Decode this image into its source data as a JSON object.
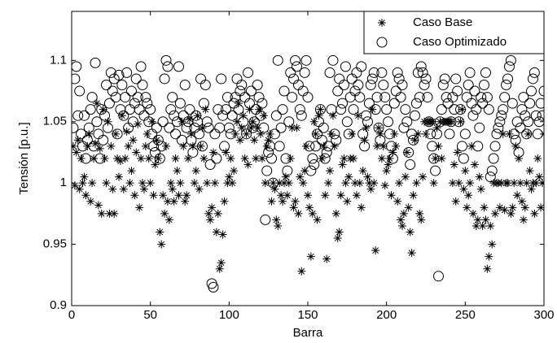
{
  "chart_data": {
    "type": "scatter",
    "xlabel": "Barra",
    "ylabel": "Tensión [p.u.]",
    "xlim": [
      0,
      300
    ],
    "ylim": [
      0.9,
      1.14
    ],
    "xticks": [
      0,
      50,
      100,
      150,
      200,
      250,
      300
    ],
    "yticks": [
      0.9,
      0.95,
      1,
      1.05,
      1.1
    ],
    "grid": false,
    "legend": "upper right",
    "x": [
      1,
      2,
      3,
      4,
      5,
      6,
      7,
      8,
      9,
      10,
      11,
      12,
      13,
      14,
      15,
      16,
      17,
      18,
      19,
      20,
      21,
      22,
      23,
      24,
      25,
      26,
      27,
      28,
      29,
      30,
      31,
      32,
      33,
      34,
      35,
      36,
      37,
      38,
      39,
      40,
      41,
      42,
      43,
      44,
      45,
      46,
      47,
      48,
      49,
      50,
      51,
      52,
      53,
      54,
      55,
      56,
      57,
      58,
      59,
      60,
      61,
      62,
      63,
      64,
      65,
      66,
      67,
      68,
      69,
      70,
      71,
      72,
      73,
      74,
      75,
      76,
      77,
      78,
      79,
      80,
      81,
      82,
      83,
      84,
      85,
      86,
      87,
      88,
      89,
      90,
      91,
      92,
      93,
      94,
      95,
      96,
      97,
      98,
      99,
      100,
      101,
      102,
      103,
      104,
      105,
      106,
      107,
      108,
      109,
      110,
      111,
      112,
      113,
      114,
      115,
      116,
      117,
      118,
      119,
      120,
      121,
      122,
      123,
      124,
      125,
      126,
      127,
      128,
      129,
      130,
      131,
      132,
      133,
      134,
      135,
      136,
      137,
      138,
      139,
      140,
      141,
      142,
      143,
      144,
      145,
      146,
      147,
      148,
      149,
      150,
      151,
      152,
      153,
      154,
      155,
      156,
      157,
      158,
      159,
      160,
      161,
      162,
      163,
      164,
      165,
      166,
      167,
      168,
      169,
      170,
      171,
      172,
      173,
      174,
      175,
      176,
      177,
      178,
      179,
      180,
      181,
      182,
      183,
      184,
      185,
      186,
      187,
      188,
      189,
      190,
      191,
      192,
      193,
      194,
      195,
      196,
      197,
      198,
      199,
      200,
      201,
      202,
      203,
      204,
      205,
      206,
      207,
      208,
      209,
      210,
      211,
      212,
      213,
      214,
      215,
      216,
      217,
      218,
      219,
      220,
      221,
      222,
      223,
      224,
      225,
      226,
      227,
      228,
      229,
      230,
      231,
      232,
      233,
      234,
      235,
      236,
      237,
      238,
      239,
      240,
      241,
      242,
      243,
      244,
      245,
      246,
      247,
      248,
      249,
      250,
      251,
      252,
      253,
      254,
      255,
      256,
      257,
      258,
      259,
      260,
      261,
      262,
      263,
      264,
      265,
      266,
      267,
      268,
      269,
      270,
      271,
      272,
      273,
      274,
      275,
      276,
      277,
      278,
      279,
      280,
      281,
      282,
      283,
      284,
      285,
      286,
      287,
      288,
      289,
      290,
      291,
      292,
      293,
      294,
      295,
      296,
      297,
      298,
      299,
      300
    ],
    "series": [
      {
        "name": "Caso Base",
        "color": "#000000",
        "marker": "asterisk",
        "values": [
          1.03,
          0.998,
          1.025,
          1.035,
          0.995,
          1.02,
          1.0,
          1.005,
          0.99,
          1.03,
          1.04,
          0.985,
          1.0,
          1.02,
          1.032,
          1.065,
          0.982,
          1.028,
          0.975,
          1.06,
          1.02,
          1.0,
          1.05,
          0.975,
          1.03,
          0.995,
          0.975,
          1.04,
          1.02,
          1.005,
          1.018,
          1.055,
          0.995,
          1.02,
          1.042,
          1.03,
          1.0,
          1.01,
          1.035,
          0.99,
          1.025,
          1.048,
          0.98,
          1.02,
          1.0,
          0.995,
          1.03,
          1.04,
          1.02,
          1.0,
          1.05,
          0.99,
          1.015,
          1.035,
          1.02,
          0.96,
          0.95,
          0.99,
          0.975,
          1.03,
          0.985,
          0.97,
          1.0,
          0.995,
          0.985,
          1.02,
          1.01,
          0.99,
          1.0,
          1.05,
          1.03,
          0.985,
          0.99,
          1.02,
          1.052,
          1.04,
          1.03,
          1.0,
          1.01,
          1.055,
          0.995,
          1.03,
          1.045,
          1.02,
          1.06,
          1.0,
          0.975,
          0.97,
          0.98,
          1.025,
          1.0,
          0.96,
          0.975,
          0.93,
          0.935,
          0.958,
          0.985,
          1.025,
          1.0,
          1.005,
          1.02,
          1.0,
          1.01,
          1.04,
          1.05,
          1.065,
          1.035,
          1.045,
          1.055,
          1.02,
          1.04,
          1.015,
          1.06,
          1.045,
          1.05,
          1.035,
          1.02,
          1.045,
          1.06,
          1.04,
          1.02,
          1.055,
          1.0,
          1.03,
          1.035,
          1.04,
          0.985,
          1.0,
          0.995,
          0.97,
          0.965,
          1.0,
          0.99,
          0.985,
          1.0,
          1.005,
          0.99,
          1.0,
          1.02,
          1.045,
          0.98,
          0.985,
          1.045,
          0.975,
          1.005,
          0.928,
          1.0,
          1.01,
          1.03,
          0.99,
          0.98,
          0.94,
          0.975,
          1.05,
          1.04,
          0.97,
          1.055,
          1.06,
          1.02,
          1.03,
          0.99,
          0.938,
          1.0,
          1.01,
          1.04,
          1.055,
          1.03,
          0.975,
          0.955,
          0.96,
          0.99,
          1.015,
          1.02,
          1.0,
          0.985,
          1.005,
          1.02,
          1.04,
          1.02,
          1.0,
          0.99,
          1.055,
          1.0,
          0.98,
          1.01,
          1.035,
          1.045,
          1.005,
          1.0,
          0.995,
          1.06,
          1.0,
          0.945,
          1.03,
          1.045,
          1.04,
          1.02,
          1.03,
          0.998,
          1.01,
          1.015,
          1.02,
          0.99,
          1.025,
          1.04,
          1.03,
          0.985,
          1.0,
          0.97,
          0.965,
          0.975,
          1.005,
          1.025,
          0.98,
          0.96,
          0.943,
          0.99,
          1.035,
          1.0,
          1.04,
          0.975,
          0.97,
          1.005,
          1.05,
          1.04,
          1.05,
          1.05,
          1.05,
          1.05,
          1.0,
          1.02,
          1.045,
          1.03,
          1.05,
          1.02,
          1.05,
          1.05,
          1.05,
          1.05,
          1.05,
          1.05,
          1.0,
          1.015,
          0.985,
          1.025,
          1.0,
          1.05,
          1.06,
          0.995,
          1.01,
          0.98,
          0.99,
          1.0,
          1.03,
          0.975,
          1.015,
          0.965,
          0.97,
          1.005,
          0.995,
          0.965,
          0.98,
          0.97,
          0.93,
          0.94,
          0.965,
          0.95,
          1.0,
          0.975,
          1.0,
          1.0,
          0.98,
          1.0,
          1.04,
          0.978,
          1.0,
          1.0,
          1.04,
          0.975,
          0.98,
          1.0,
          1.03,
          0.99,
          1.02,
          1.0,
          0.985,
          0.97,
          0.98,
          1.0,
          1.04,
          1.01,
          0.995,
          1.0,
          0.975,
          1.0,
          1.02,
          1.005,
          0.98,
          1.0,
          1.04
        ]
      },
      {
        "name": "Caso Optimizado",
        "color": "#000000",
        "marker": "circle",
        "values": [
          1.045,
          1.085,
          1.095,
          1.055,
          1.075,
          1.04,
          1.03,
          1.055,
          1.02,
          1.035,
          1.045,
          1.06,
          1.07,
          1.03,
          1.098,
          1.05,
          1.04,
          1.02,
          1.06,
          1.035,
          1.055,
          1.08,
          1.045,
          1.065,
          1.09,
          1.075,
          1.085,
          1.07,
          1.04,
          1.088,
          1.06,
          1.08,
          1.055,
          1.07,
          1.09,
          1.045,
          1.06,
          1.075,
          1.05,
          1.065,
          1.085,
          1.07,
          1.06,
          1.095,
          1.08,
          1.055,
          1.07,
          1.065,
          1.05,
          1.06,
          1.04,
          1.03,
          1.025,
          1.045,
          1.035,
          1.02,
          1.03,
          1.05,
          1.085,
          1.1,
          1.095,
          1.045,
          1.06,
          1.07,
          1.055,
          1.04,
          1.05,
          1.095,
          1.065,
          1.035,
          1.055,
          1.08,
          1.045,
          1.05,
          1.06,
          1.035,
          1.025,
          1.045,
          1.055,
          1.05,
          1.04,
          1.085,
          1.03,
          1.065,
          1.08,
          1.05,
          1.045,
          1.015,
          0.918,
          0.915,
          1.04,
          1.02,
          1.06,
          1.045,
          1.085,
          1.055,
          1.03,
          1.06,
          1.07,
          1.045,
          1.04,
          1.055,
          1.065,
          1.07,
          1.085,
          1.06,
          1.075,
          1.08,
          1.05,
          1.07,
          1.04,
          1.09,
          1.065,
          1.075,
          1.045,
          1.05,
          1.06,
          1.08,
          1.07,
          1.055,
          1.065,
          1.045,
          0.97,
          1.01,
          1.025,
          1.03,
          1.02,
          1.0,
          1.04,
          1.055,
          1.1,
          1.03,
          1.045,
          1.06,
          1.075,
          1.02,
          1.01,
          1.05,
          1.09,
          1.07,
          1.085,
          1.1,
          1.095,
          1.08,
          1.06,
          1.055,
          1.075,
          1.09,
          1.1,
          1.07,
          1.03,
          1.01,
          1.02,
          1.015,
          1.03,
          1.04,
          1.05,
          1.06,
          1.035,
          1.045,
          1.02,
          1.025,
          1.03,
          1.09,
          1.06,
          1.1,
          1.04,
          1.035,
          1.075,
          1.085,
          1.06,
          1.065,
          1.08,
          1.095,
          1.05,
          1.04,
          1.07,
          1.085,
          1.06,
          1.075,
          1.09,
          1.08,
          1.07,
          1.095,
          1.04,
          1.03,
          1.055,
          1.05,
          1.065,
          1.08,
          1.085,
          1.09,
          1.06,
          1.07,
          1.045,
          1.035,
          1.09,
          1.08,
          1.07,
          1.06,
          1.05,
          1.04,
          1.03,
          1.02,
          1.065,
          1.075,
          1.09,
          1.085,
          1.07,
          1.08,
          1.045,
          1.06,
          1.05,
          1.025,
          1.015,
          1.04,
          1.035,
          1.055,
          1.065,
          1.09,
          1.07,
          1.095,
          1.09,
          1.08,
          1.085,
          1.07,
          1.05,
          1.04,
          1.03,
          1.02,
          1.01,
          1.04,
          0.924,
          1.05,
          1.06,
          1.08,
          1.085,
          1.07,
          1.065,
          1.04,
          1.05,
          1.07,
          1.06,
          1.085,
          1.075,
          1.05,
          1.06,
          1.03,
          1.02,
          1.04,
          1.07,
          1.08,
          1.09,
          1.065,
          1.055,
          1.075,
          1.06,
          1.03,
          1.045,
          1.07,
          1.065,
          1.08,
          1.09,
          1.07,
          1.06,
          1.005,
          1.01,
          1.02,
          1.03,
          1.04,
          1.045,
          1.05,
          1.055,
          1.06,
          1.07,
          1.08,
          1.085,
          1.095,
          1.1,
          1.065,
          1.04,
          1.035,
          1.05,
          1.025,
          1.045,
          1.06,
          1.07,
          1.055,
          1.04,
          1.05,
          1.065,
          1.075,
          1.085,
          1.09,
          1.055,
          1.04,
          1.05,
          1.065,
          1.055,
          1.075
        ]
      }
    ]
  }
}
